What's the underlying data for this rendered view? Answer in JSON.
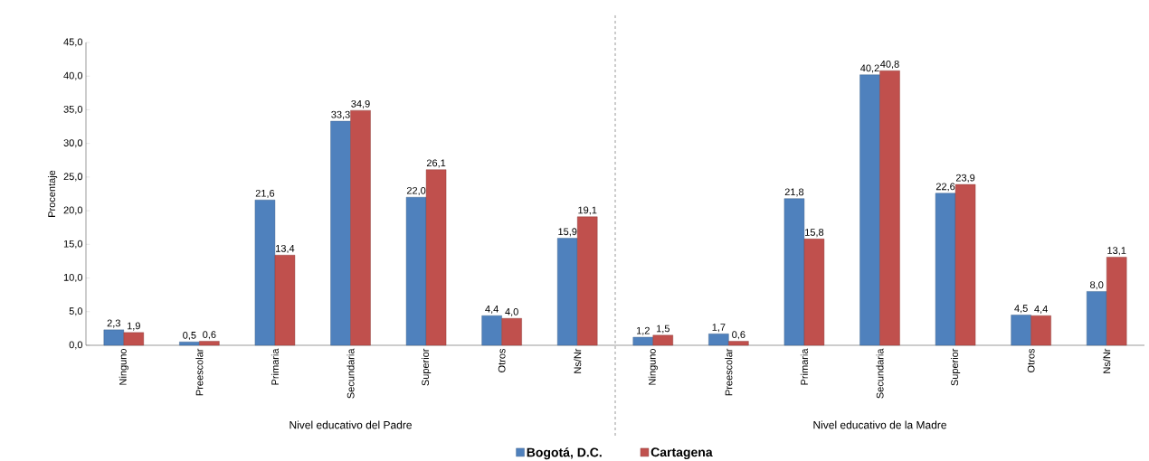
{
  "chart_data": {
    "type": "bar",
    "ylabel": "Procentaje",
    "categories": [
      "Ninguno",
      "Preescolar",
      "Primaria",
      "Secundaria",
      "Superior",
      "Otros",
      "Ns/Nr",
      "Ninguno",
      "Preescolar",
      "Primaria",
      "Secundaria",
      "Superior",
      "Otros",
      "Ns/Nr"
    ],
    "series": [
      {
        "name": "Bogotá, D.C.",
        "color": "#4f81bd",
        "values": [
          2.3,
          0.5,
          21.6,
          33.3,
          22.0,
          4.4,
          15.9,
          1.2,
          1.7,
          21.8,
          40.2,
          22.6,
          4.5,
          8.0
        ],
        "value_labels": [
          "2,3",
          "0,5",
          "21,6",
          "33,3",
          "22,0",
          "4,4",
          "15,9",
          "1,2",
          "1,7",
          "21,8",
          "40,2",
          "22,6",
          "4,5",
          "8,0"
        ]
      },
      {
        "name": "Cartagena",
        "color": "#c0504d",
        "values": [
          1.9,
          0.6,
          13.4,
          34.9,
          26.1,
          4.0,
          19.1,
          1.5,
          0.6,
          15.8,
          40.8,
          23.9,
          4.4,
          13.1
        ],
        "value_labels": [
          "1,9",
          "0,6",
          "13,4",
          "34,9",
          "26,1",
          "4,0",
          "19,1",
          "1,5",
          "0,6",
          "15,8",
          "40,8",
          "23,9",
          "4,4",
          "13,1"
        ]
      }
    ],
    "annotations": [
      "Nivel educativo del Padre",
      "Nivel educativo de la Madre"
    ],
    "ylim": [
      0,
      45
    ],
    "yticks": [
      {
        "value": 0,
        "label": "0,0"
      },
      {
        "value": 5,
        "label": "5,0"
      },
      {
        "value": 10,
        "label": "10,0"
      },
      {
        "value": 15,
        "label": "15,0"
      },
      {
        "value": 20,
        "label": "20,0"
      },
      {
        "value": 25,
        "label": "25,0"
      },
      {
        "value": 30,
        "label": "30,0"
      },
      {
        "value": 35,
        "label": "35,0"
      },
      {
        "value": 40,
        "label": "40,0"
      },
      {
        "value": 45,
        "label": "45,0"
      }
    ],
    "grid": false,
    "legend": "bottom"
  }
}
